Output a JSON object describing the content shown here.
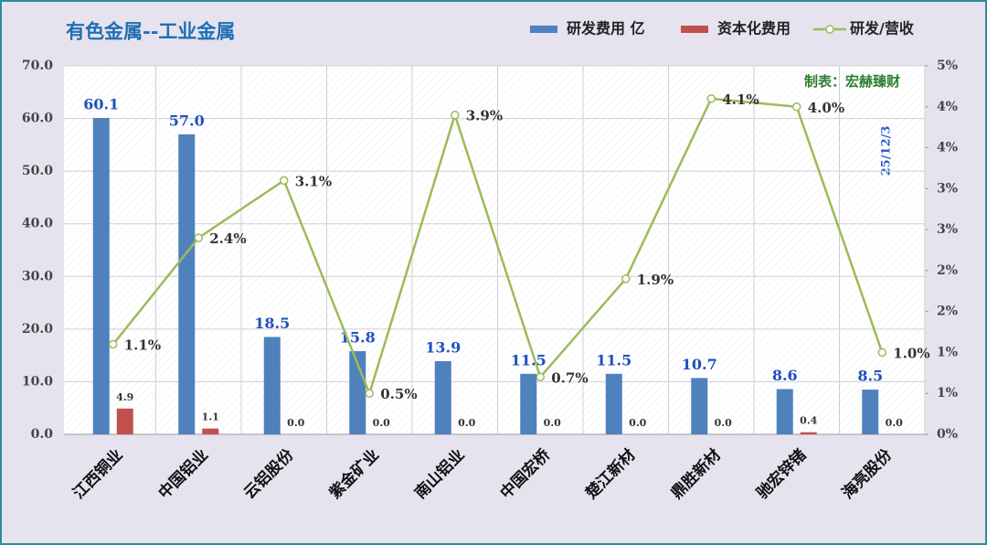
{
  "chart_data": {
    "type": "bar-line",
    "title": "有色金属--工业金属",
    "annotations": [
      "制表：宏赫臻财",
      "25/12/3"
    ],
    "categories": [
      "江西铜业",
      "中国铝业",
      "云铝股份",
      "紫金矿业",
      "南山铝业",
      "中国宏桥",
      "楚江新材",
      "鼎胜新材",
      "驰宏锌锗",
      "海亮股份"
    ],
    "series": [
      {
        "name": "研发费用 亿",
        "type": "bar",
        "color": "#4f81bd",
        "values": [
          60.1,
          57.0,
          18.5,
          15.8,
          13.9,
          11.5,
          11.5,
          10.7,
          8.6,
          8.5
        ],
        "value_labels": [
          "60.1",
          "57.0",
          "18.5",
          "15.8",
          "13.9",
          "11.5",
          "11.5",
          "10.7",
          "8.6",
          "8.5"
        ]
      },
      {
        "name": "资本化费用",
        "type": "bar",
        "color": "#c0504d",
        "values": [
          4.9,
          1.1,
          0,
          0,
          0,
          0,
          0,
          0,
          0.4,
          0
        ],
        "value_labels": [
          "4.9",
          "1.1",
          "0.0",
          "0.0",
          "0.0",
          "0.0",
          "0.0",
          "0.0",
          "0.4",
          "0.0"
        ]
      },
      {
        "name": "研发/营收",
        "type": "line",
        "axis": "y2",
        "color": "#9bbb59",
        "values": [
          1.1,
          2.4,
          3.1,
          0.5,
          3.9,
          0.7,
          1.9,
          4.1,
          4.0,
          1.0
        ],
        "value_labels": [
          "1.1%",
          "2.4%",
          "3.1%",
          "0.5%",
          "3.9%",
          "0.7%",
          "1.9%",
          "4.1%",
          "4.0%",
          "1.0%"
        ]
      }
    ],
    "ylim": [
      0,
      70
    ],
    "yticks": [
      {
        "value": 0,
        "label": "0.0"
      },
      {
        "value": 10,
        "label": "10.0"
      },
      {
        "value": 20,
        "label": "20.0"
      },
      {
        "value": 30,
        "label": "30.0"
      },
      {
        "value": 40,
        "label": "40.0"
      },
      {
        "value": 50,
        "label": "50.0"
      },
      {
        "value": 60,
        "label": "60.0"
      },
      {
        "value": 70,
        "label": "70.0"
      }
    ],
    "y2lim": [
      0,
      4.5
    ],
    "y2ticks": [
      {
        "value": 0,
        "label": "0%"
      },
      {
        "value": 0.5,
        "label": "1%"
      },
      {
        "value": 1,
        "label": "1%"
      },
      {
        "value": 1.5,
        "label": "2%"
      },
      {
        "value": 2,
        "label": "2%"
      },
      {
        "value": 2.5,
        "label": "3%"
      },
      {
        "value": 3,
        "label": "3%"
      },
      {
        "value": 3.5,
        "label": "4%"
      },
      {
        "value": 4,
        "label": "4%"
      },
      {
        "value": 4.5,
        "label": "5%"
      }
    ],
    "grid": true
  }
}
